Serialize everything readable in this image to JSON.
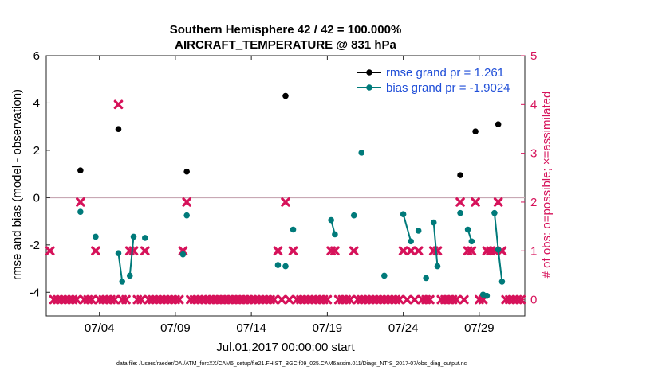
{
  "chart_data": {
    "type": "scatter",
    "title": "Southern Hemisphere 42 / 42 = 100.000%",
    "subtitle": "AIRCRAFT_TEMPERATURE @ 831 hPa",
    "xlabel": "Jul.01,2017 00:00:00 start",
    "ylabel": "rmse and bias (model - observation)",
    "ylabel_right": "# of obs: o=possible; ×=assimilated",
    "xlim": [
      0.5,
      32.0
    ],
    "ylim": [
      -5,
      6
    ],
    "ylim_right": [
      -0.333,
      5
    ],
    "x_ticks": [
      4,
      9,
      14,
      19,
      24,
      29
    ],
    "x_tick_labels": [
      "07/04",
      "07/09",
      "07/14",
      "07/19",
      "07/24",
      "07/29"
    ],
    "y_ticks": [
      -4,
      -2,
      0,
      2,
      4,
      6
    ],
    "y_ticks_right": [
      0,
      1,
      2,
      3,
      4,
      5
    ],
    "zero_line": 0,
    "legend_position": "top-right",
    "grid": false,
    "series": [
      {
        "name": "rmse grand pr = 1.261",
        "color": "#000000",
        "points": [
          [
            2.75,
            1.15
          ],
          [
            5.25,
            2.9
          ],
          [
            9.75,
            1.1
          ],
          [
            16.25,
            4.3
          ],
          [
            27.75,
            0.95
          ],
          [
            28.75,
            2.8
          ],
          [
            30.25,
            3.1
          ]
        ]
      },
      {
        "name": "bias grand pr = -1.9024",
        "color": "#007a7a",
        "segments": [
          [
            [
              2.75,
              -0.6
            ]
          ],
          [
            [
              3.75,
              -1.65
            ]
          ],
          [
            [
              5.25,
              -2.35
            ],
            [
              5.5,
              -3.55
            ]
          ],
          [
            [
              6.0,
              -3.3
            ],
            [
              6.25,
              -1.65
            ]
          ],
          [
            [
              7.0,
              -1.7
            ]
          ],
          [
            [
              9.5,
              -2.4
            ]
          ],
          [
            [
              9.75,
              -0.75
            ]
          ],
          [
            [
              15.75,
              -2.85
            ]
          ],
          [
            [
              16.25,
              -2.9
            ]
          ],
          [
            [
              16.75,
              -1.35
            ]
          ],
          [
            [
              19.25,
              -0.95
            ],
            [
              19.5,
              -1.55
            ]
          ],
          [
            [
              20.75,
              -0.75
            ]
          ],
          [
            [
              21.25,
              1.9
            ]
          ],
          [
            [
              22.75,
              -3.3
            ]
          ],
          [
            [
              24.0,
              -0.7
            ],
            [
              24.5,
              -1.85
            ]
          ],
          [
            [
              25.0,
              -1.4
            ]
          ],
          [
            [
              25.5,
              -3.4
            ]
          ],
          [
            [
              26.0,
              -1.05
            ],
            [
              26.25,
              -2.9
            ]
          ],
          [
            [
              27.75,
              -0.65
            ]
          ],
          [
            [
              28.25,
              -1.35
            ],
            [
              28.5,
              -1.85
            ]
          ],
          [
            [
              29.25,
              -4.1
            ],
            [
              29.5,
              -4.15
            ]
          ],
          [
            [
              30.0,
              -0.65
            ],
            [
              30.25,
              -2.2
            ],
            [
              30.5,
              -3.55
            ]
          ]
        ]
      }
    ],
    "obs_counts": {
      "name": "# of obs",
      "color": "#d6125a",
      "nonzero": [
        [
          0.75,
          1
        ],
        [
          2.75,
          2
        ],
        [
          3.75,
          1
        ],
        [
          5.25,
          4
        ],
        [
          6.0,
          1
        ],
        [
          6.25,
          1
        ],
        [
          7.0,
          1
        ],
        [
          9.5,
          1
        ],
        [
          9.75,
          2
        ],
        [
          16.25,
          2
        ],
        [
          15.75,
          1
        ],
        [
          16.75,
          1
        ],
        [
          19.25,
          1
        ],
        [
          19.5,
          1
        ],
        [
          20.75,
          1
        ],
        [
          24.0,
          1
        ],
        [
          24.5,
          1
        ],
        [
          25.0,
          1
        ],
        [
          26.0,
          1
        ],
        [
          26.25,
          1
        ],
        [
          27.75,
          2
        ],
        [
          28.25,
          1
        ],
        [
          28.5,
          1
        ],
        [
          28.75,
          2
        ],
        [
          29.5,
          1
        ],
        [
          29.75,
          1
        ],
        [
          30.0,
          1
        ],
        [
          30.25,
          2
        ],
        [
          30.5,
          1
        ]
      ]
    }
  },
  "footer": {
    "data_file": "data file: /Users/raeder/DAI/ATM_forcXX/CAM6_setup/f.e21.FHIST_BGC.f09_025.CAM6assim.011/Diags_NTrS_2017-07/obs_diag_output.nc"
  }
}
